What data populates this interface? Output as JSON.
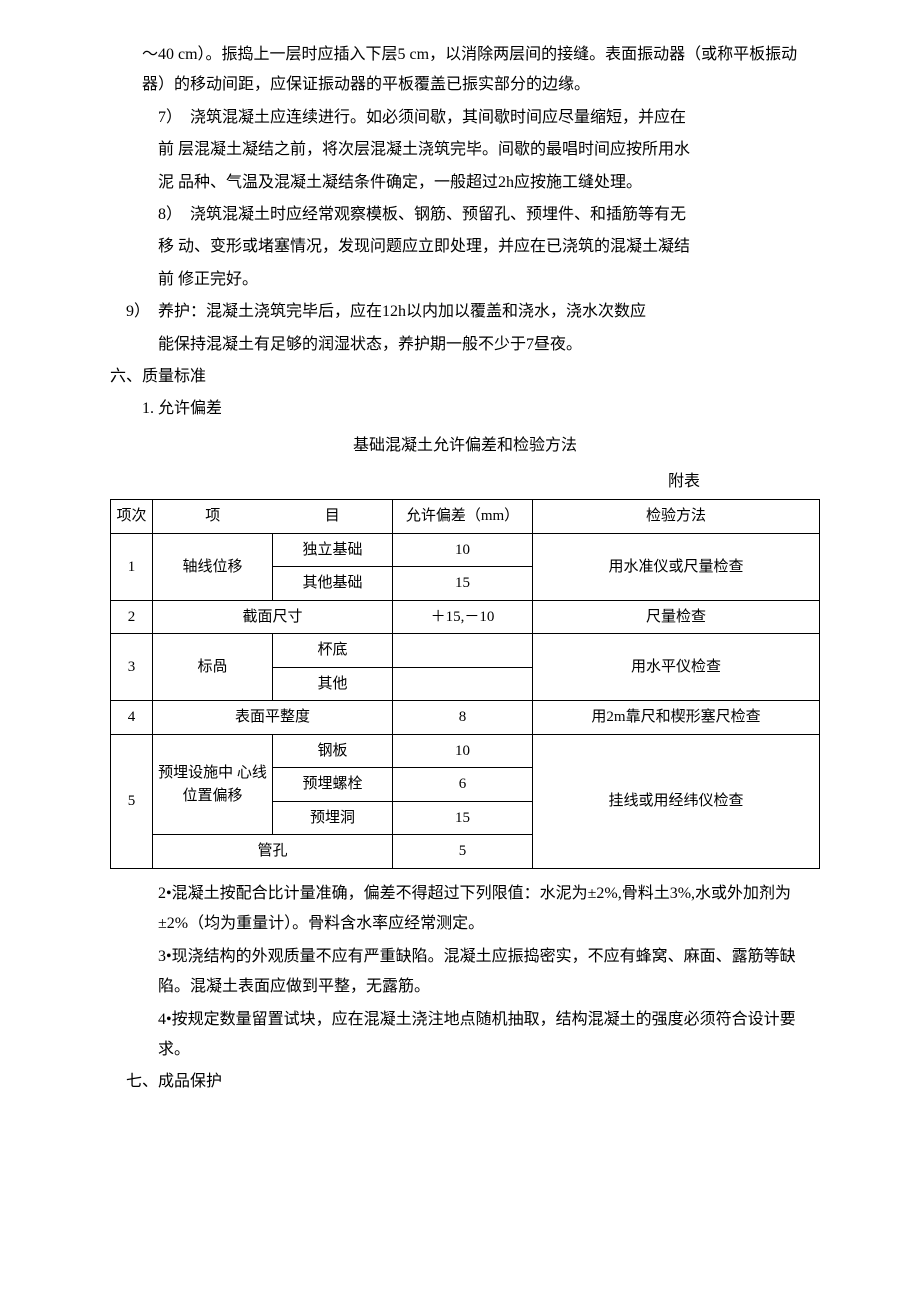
{
  "paragraphs": {
    "p1": "～40 cm）。振捣上一层时应插入下层5 cm，以消除两层间的接缝。表面振动器（或称平板振动器）的移动间距，应保证振动器的平板覆盖已振实部分的边缘。",
    "p2a": "7）　浇筑混凝土应连续进行。如必须间歇，其间歇时间应尽量缩短，并应在",
    "p2b": "前 层混凝土凝结之前，将次层混凝土浇筑完毕。间歇的最唱时间应按所用水",
    "p2c": "泥 品种、气温及混凝土凝结条件确定，一般超过2h应按施工缝处理。",
    "p3a": "8）　浇筑混凝土时应经常观察模板、钢筋、预留孔、预埋件、和插筋等有无",
    "p3b": "移 动、变形或堵塞情况，发现问题应立即处理，并应在已浇筑的混凝土凝结",
    "p3c": "前 修正完好。",
    "p4a": "9）　养护：混凝土浇筑完毕后，应在12h以内加以覆盖和浇水，浇水次数应",
    "p4b": "能保持混凝土有足够的润湿状态，养护期一般不少于7昼夜。",
    "h6": "六、质量标准",
    "h6_1": "1. 允许偏差",
    "tableTitle": "基础混凝土允许偏差和检验方法",
    "attach": "附表",
    "afterTable": {
      "p2": "2•混凝土按配合比计量准确，偏差不得超过下列限值：水泥为±2%,骨料土3%,水或外加剂为±2%（均为重量计）。骨料含水率应经常测定。",
      "p3": "3•现浇结构的外观质量不应有严重缺陷。混凝土应振捣密实，不应有蜂窝、麻面、露筋等缺陷。混凝土表面应做到平整，无露筋。",
      "p4": "4•按规定数量留置试块，应在混凝土浇注地点随机抽取，结构混凝土的强度必须符合设计要求。"
    },
    "h7": "七、成品保护"
  },
  "table": {
    "headers": {
      "idx": "项次",
      "item_a": "项",
      "item_b": "目",
      "deviation": "允许偏差（mm）",
      "method": "检验方法"
    },
    "rows": [
      {
        "idx": "1",
        "a": "轴线位移",
        "b1": "独立基础",
        "b2": "其他基础",
        "d1": "10",
        "d2": "15",
        "m": "用水准仪或尺量检查"
      },
      {
        "idx": "2",
        "ab": "截面尺寸",
        "d": "＋15,－10",
        "m": "尺量检查"
      },
      {
        "idx": "3",
        "a": "标咼",
        "b1": "杯底",
        "b2": "其他",
        "d1": "",
        "d2": "",
        "m": "用水平仪检查"
      },
      {
        "idx": "4",
        "ab": "表面平整度",
        "d": "8",
        "m": "用2m靠尺和楔形塞尺检查"
      },
      {
        "idx": "5",
        "a": "预埋设施中 心线位置偏移",
        "b1": "钢板",
        "b2": "预埋螺栓",
        "b3": "预埋洞",
        "b4": "管孔",
        "d1": "10",
        "d2": "6",
        "d3": "15",
        "d4": "5",
        "m": "挂线或用经纬仪检查"
      }
    ]
  }
}
